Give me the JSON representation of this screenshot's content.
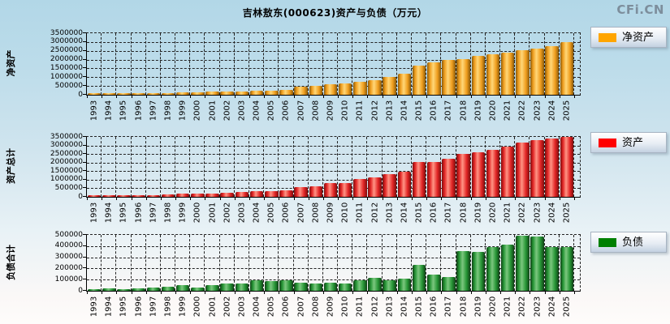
{
  "page": {
    "title": "吉林敖东(000623)资产与负债（万元）",
    "watermark": "CFi.CN"
  },
  "colors": {
    "background_top": "#b2d7e7",
    "background_bottom": "#fefcfb",
    "grid": "#222222",
    "axis": "#000000",
    "net_assets": "#ffa500",
    "assets": "#ff0000",
    "liabilities": "#008000"
  },
  "chart_data": [
    {
      "type": "bar",
      "name": "net-assets",
      "y_axis_title": "净资产",
      "legend": "净资产",
      "legend_color": "#ffa500",
      "legend_position": "right",
      "grid": true,
      "bar_colors": {
        "edge": "#8a5a0a",
        "body": "#f09e1e",
        "highlight": "#ffd779"
      },
      "ylim": [
        0,
        3500000
      ],
      "y_ticks": [
        "3500000",
        "3000000",
        "2500000",
        "2000000",
        "1500000",
        "1000000",
        "500000",
        "0"
      ],
      "x": [
        "1993",
        "1994",
        "1995",
        "1996",
        "1997",
        "1998",
        "1999",
        "2000",
        "2001",
        "2002",
        "2003",
        "2004",
        "2005",
        "2006",
        "2007",
        "2008",
        "2009",
        "2010",
        "2011",
        "2012",
        "2013",
        "2014",
        "2015",
        "2016",
        "2017",
        "2018",
        "2019",
        "2020",
        "2021",
        "2022",
        "2023",
        "2024",
        "2025"
      ],
      "values": [
        70000,
        75000,
        85000,
        90000,
        100000,
        115000,
        135000,
        160000,
        175000,
        175000,
        190000,
        220000,
        235000,
        265000,
        470000,
        500000,
        590000,
        660000,
        740000,
        850000,
        1000000,
        1200000,
        1670000,
        1860000,
        2000000,
        2040000,
        2190000,
        2310000,
        2410000,
        2540000,
        2630000,
        2780000,
        3000000
      ]
    },
    {
      "type": "bar",
      "name": "total-assets",
      "y_axis_title": "资产总计",
      "legend": "资产",
      "legend_color": "#ff0000",
      "legend_position": "right",
      "grid": true,
      "bar_colors": {
        "edge": "#7d0d0d",
        "body": "#e22525",
        "highlight": "#ff9585"
      },
      "ylim": [
        0,
        3500000
      ],
      "y_ticks": [
        "3500000",
        "3000000",
        "2500000",
        "2000000",
        "1500000",
        "1000000",
        "500000",
        "0"
      ],
      "x": [
        "1993",
        "1994",
        "1995",
        "1996",
        "1997",
        "1998",
        "1999",
        "2000",
        "2001",
        "2002",
        "2003",
        "2004",
        "2005",
        "2006",
        "2007",
        "2008",
        "2009",
        "2010",
        "2011",
        "2012",
        "2013",
        "2014",
        "2015",
        "2016",
        "2017",
        "2018",
        "2019",
        "2020",
        "2021",
        "2022",
        "2023",
        "2024",
        "2025"
      ],
      "values": [
        75000,
        75000,
        80000,
        90000,
        105000,
        120000,
        175000,
        190000,
        210000,
        250000,
        265000,
        310000,
        325000,
        380000,
        590000,
        620000,
        790000,
        800000,
        1030000,
        1150000,
        1320000,
        1460000,
        2020000,
        2050000,
        2230000,
        2510000,
        2590000,
        2750000,
        2940000,
        3180000,
        3290000,
        3420000,
        3490000
      ]
    },
    {
      "type": "bar",
      "name": "total-liabilities",
      "y_axis_title": "负债合计",
      "legend": "负债",
      "legend_color": "#008000",
      "legend_position": "right",
      "grid": true,
      "bar_colors": {
        "edge": "#103f16",
        "body": "#259434",
        "highlight": "#7cc77f"
      },
      "ylim": [
        0,
        500000
      ],
      "y_ticks": [
        "500000",
        "400000",
        "300000",
        "200000",
        "100000",
        "0"
      ],
      "x": [
        "1993",
        "1994",
        "1995",
        "1996",
        "1997",
        "1998",
        "1999",
        "2000",
        "2001",
        "2002",
        "2003",
        "2004",
        "2005",
        "2006",
        "2007",
        "2008",
        "2009",
        "2010",
        "2011",
        "2012",
        "2013",
        "2014",
        "2015",
        "2016",
        "2017",
        "2018",
        "2019",
        "2020",
        "2021",
        "2022",
        "2023",
        "2024",
        "2025"
      ],
      "values": [
        12000,
        20000,
        17000,
        20000,
        32000,
        34000,
        49000,
        32000,
        54000,
        68000,
        68000,
        96000,
        89000,
        96000,
        72000,
        67000,
        72000,
        63000,
        93000,
        118000,
        93000,
        110000,
        233000,
        145000,
        125000,
        358000,
        350000,
        395000,
        415000,
        490000,
        483000,
        388000,
        388000
      ]
    }
  ]
}
